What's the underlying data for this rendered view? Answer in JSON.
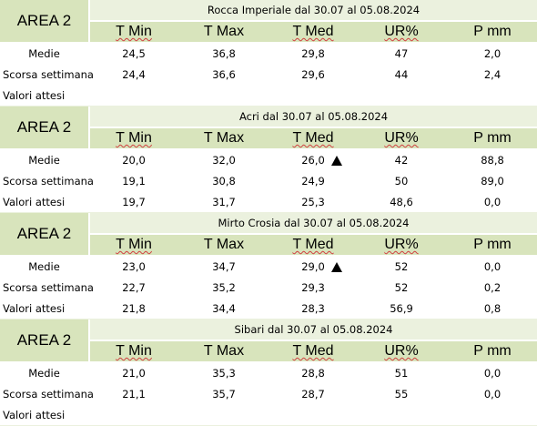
{
  "area_label": "AREA 2",
  "headers": [
    "T Min",
    "T Max",
    "T Med",
    "UR%",
    "P mm"
  ],
  "row_labels": [
    "Medie",
    "Scorsa settimana",
    "Valori attesi"
  ],
  "blocks": [
    {
      "title": "Rocca Imperiale  dal 30.07 al 05.08.2024",
      "medie": [
        "24,5",
        "36,8",
        "29,8",
        "47",
        "2,0"
      ],
      "scorsa": [
        "24,4",
        "36,6",
        "29,6",
        "44",
        "2,4"
      ],
      "attesi": [
        "",
        "",
        "",
        "",
        ""
      ],
      "trend_arrow": false
    },
    {
      "title": "Acri dal 30.07 al 05.08.2024",
      "medie": [
        "20,0",
        "32,0",
        "26,0",
        "42",
        "88,8"
      ],
      "scorsa": [
        "19,1",
        "30,8",
        "24,9",
        "50",
        "89,0"
      ],
      "attesi": [
        "19,7",
        "31,7",
        "25,3",
        "48,6",
        "0,0"
      ],
      "trend_arrow": true
    },
    {
      "title": "Mirto Crosia dal 30.07 al 05.08.2024",
      "medie": [
        "23,0",
        "34,7",
        "29,0",
        "52",
        "0,0"
      ],
      "scorsa": [
        "22,7",
        "35,2",
        "29,3",
        "52",
        "0,2"
      ],
      "attesi": [
        "21,8",
        "34,4",
        "28,3",
        "56,9",
        "0,8"
      ],
      "trend_arrow": true
    },
    {
      "title": "Sibari dal 30.07 al 05.08.2024",
      "medie": [
        "21,0",
        "35,3",
        "28,8",
        "51",
        "0,0"
      ],
      "scorsa": [
        "21,1",
        "35,7",
        "28,7",
        "55",
        "0,0"
      ],
      "attesi": [
        "",
        "",
        "",
        "",
        ""
      ],
      "trend_arrow": false
    }
  ]
}
